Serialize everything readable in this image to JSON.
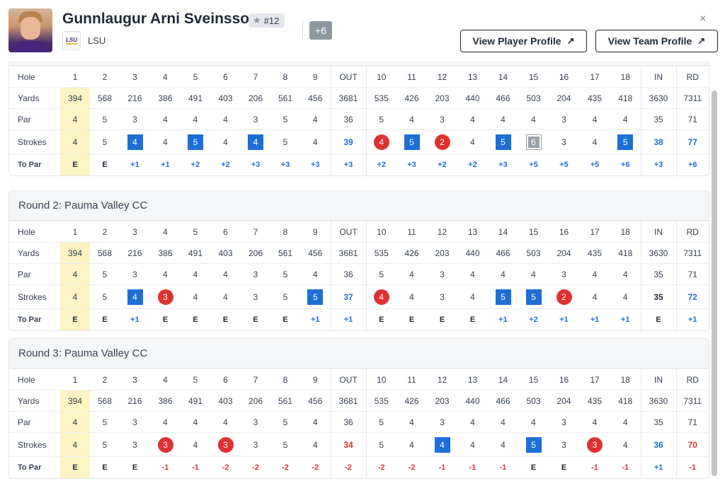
{
  "player": {
    "name": "Gunnlaugur Arni Sveinsson",
    "rank": "#12",
    "to_par": "+6",
    "team": "LSU",
    "team_logo_text": "LSU"
  },
  "buttons": {
    "player_profile": "View Player Profile",
    "team_profile": "View Team Profile",
    "close": "×"
  },
  "icons": {
    "star": "star-icon",
    "arrow": "arrow-up-right-icon",
    "close": "close-icon"
  },
  "colors": {
    "birdie": "#1d6fd8",
    "under_par_circle": "#e03131",
    "double": "#9aa1ab",
    "highlight": "#fef3c4"
  },
  "headers": [
    "Hole",
    "1",
    "2",
    "3",
    "4",
    "5",
    "6",
    "7",
    "8",
    "9",
    "OUT",
    "10",
    "11",
    "12",
    "13",
    "14",
    "15",
    "16",
    "17",
    "18",
    "IN",
    "RD"
  ],
  "row_labels": {
    "yards": "Yards",
    "par": "Par",
    "strokes": "Strokes",
    "to_par": "To Par"
  },
  "yards": [
    "394",
    "568",
    "216",
    "386",
    "491",
    "403",
    "206",
    "561",
    "456",
    "3681",
    "535",
    "426",
    "203",
    "440",
    "466",
    "503",
    "204",
    "435",
    "418",
    "3630",
    "7311"
  ],
  "par": [
    "4",
    "5",
    "3",
    "4",
    "4",
    "4",
    "3",
    "5",
    "4",
    "36",
    "5",
    "4",
    "3",
    "4",
    "4",
    "4",
    "3",
    "4",
    "4",
    "35",
    "71"
  ],
  "rounds": [
    {
      "title": "",
      "strokes": [
        "4",
        "5",
        "4",
        "4",
        "5",
        "4",
        "4",
        "5",
        "4",
        "39",
        "4",
        "5",
        "2",
        "4",
        "5",
        "6",
        "3",
        "4",
        "5",
        "38",
        "77"
      ],
      "to_par": [
        "E",
        "E",
        "+1",
        "+1",
        "+2",
        "+2",
        "+3",
        "+3",
        "+3",
        "+3",
        "+2",
        "+3",
        "+2",
        "+2",
        "+3",
        "+5",
        "+5",
        "+5",
        "+6",
        "+3",
        "+6"
      ]
    },
    {
      "title": "Round 2: Pauma Valley CC",
      "strokes": [
        "4",
        "5",
        "4",
        "3",
        "4",
        "4",
        "3",
        "5",
        "5",
        "37",
        "4",
        "4",
        "3",
        "4",
        "5",
        "5",
        "2",
        "4",
        "4",
        "35",
        "72"
      ],
      "to_par": [
        "E",
        "E",
        "+1",
        "E",
        "E",
        "E",
        "E",
        "E",
        "+1",
        "+1",
        "E",
        "E",
        "E",
        "E",
        "+1",
        "+2",
        "+1",
        "+1",
        "+1",
        "E",
        "+1"
      ]
    },
    {
      "title": "Round 3: Pauma Valley CC",
      "strokes": [
        "4",
        "5",
        "3",
        "3",
        "4",
        "3",
        "3",
        "5",
        "4",
        "34",
        "5",
        "4",
        "4",
        "4",
        "4",
        "5",
        "3",
        "3",
        "4",
        "36",
        "70"
      ],
      "to_par": [
        "E",
        "E",
        "E",
        "-1",
        "-1",
        "-2",
        "-2",
        "-2",
        "-2",
        "-2",
        "-2",
        "-2",
        "-1",
        "-1",
        "-1",
        "E",
        "E",
        "-1",
        "-1",
        "+1",
        "-1"
      ]
    }
  ]
}
